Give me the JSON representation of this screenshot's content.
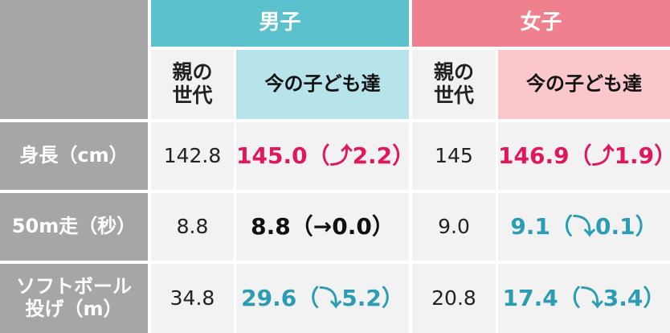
{
  "header": {
    "corner": "",
    "groups": [
      {
        "title": "男子",
        "color": "#5bc2cd",
        "parent": "親の\n世代",
        "now": "今の子ども達",
        "now_bg": "#b7e3ea"
      },
      {
        "title": "女子",
        "color": "#ef818f",
        "parent": "親の\n世代",
        "now": "今の子ども達",
        "now_bg": "#f9c7cc"
      }
    ]
  },
  "table": {
    "rows": [
      {
        "label": "身長（cm）",
        "cells": [
          {
            "text": "142.8"
          },
          {
            "text": "145.0（⤴2.2）",
            "color": "#e0185a"
          },
          {
            "text": "145"
          },
          {
            "text": "146.9（⤴1.9）",
            "color": "#e0185a"
          }
        ]
      },
      {
        "label": "50m走（秒）",
        "cells": [
          {
            "text": "8.8"
          },
          {
            "text": "8.8（→0.0）",
            "color": "#111111"
          },
          {
            "text": "9.0"
          },
          {
            "text": "9.1（⤵0.1）",
            "color": "#2a9db4"
          }
        ]
      },
      {
        "label": "ソフトボール\n投げ（m）",
        "cells": [
          {
            "text": "34.8"
          },
          {
            "text": "29.6（⤵5.2）",
            "color": "#2a9db4"
          },
          {
            "text": "20.8"
          },
          {
            "text": "17.4（⤵3.4）",
            "color": "#2a9db4"
          }
        ]
      }
    ]
  }
}
